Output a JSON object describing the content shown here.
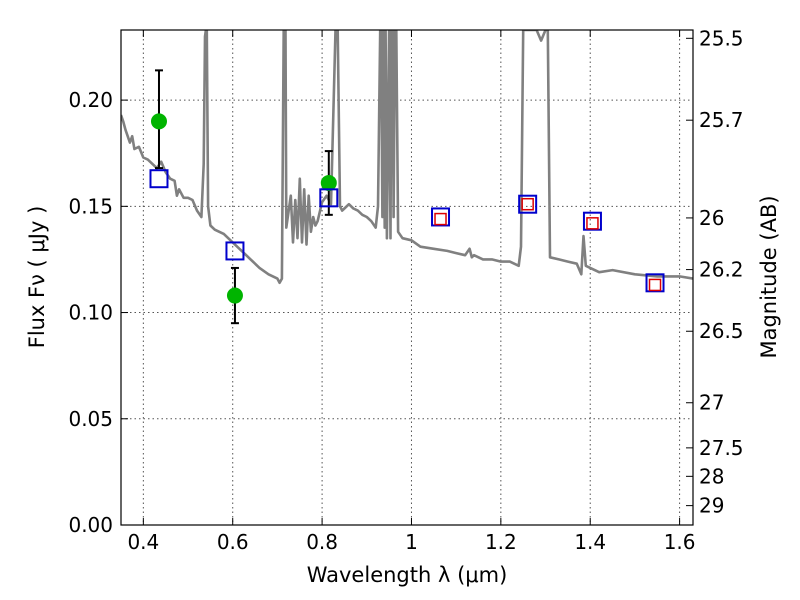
{
  "chart_data": {
    "type": "scatter",
    "title": "",
    "xlabel": "Wavelength  λ (μm)",
    "ylabel": "Flux  Fν  ( μJy )",
    "ylabel_right": "Magnitude (AB)",
    "xlim": [
      0.35,
      1.63
    ],
    "ylim": [
      0.0,
      0.233
    ],
    "grid": true,
    "x_ticks": [
      {
        "value": 0.4,
        "label": "0.4"
      },
      {
        "value": 0.6,
        "label": "0.6"
      },
      {
        "value": 0.8,
        "label": "0.8"
      },
      {
        "value": 1.0,
        "label": "1"
      },
      {
        "value": 1.2,
        "label": "1.2"
      },
      {
        "value": 1.4,
        "label": "1.4"
      },
      {
        "value": 1.6,
        "label": "1.6"
      }
    ],
    "y_ticks": [
      {
        "value": 0.0,
        "label": "0.00"
      },
      {
        "value": 0.05,
        "label": "0.05"
      },
      {
        "value": 0.1,
        "label": "0.10"
      },
      {
        "value": 0.15,
        "label": "0.15"
      },
      {
        "value": 0.2,
        "label": "0.20"
      }
    ],
    "right_ticks": [
      {
        "mag": 25.5,
        "label": "25.5"
      },
      {
        "mag": 25.7,
        "label": "25.7"
      },
      {
        "mag": 26.0,
        "label": "26"
      },
      {
        "mag": 26.2,
        "label": "26.2"
      },
      {
        "mag": 26.5,
        "label": "26.5"
      },
      {
        "mag": 27.0,
        "label": "27"
      },
      {
        "mag": 27.5,
        "label": "27.5"
      },
      {
        "mag": 28.0,
        "label": "28"
      },
      {
        "mag": 29.0,
        "label": "29"
      }
    ],
    "series": [
      {
        "kind": "line",
        "color": "#808080",
        "x": [
          0.35,
          0.355,
          0.36,
          0.365,
          0.37,
          0.375,
          0.38,
          0.39,
          0.4,
          0.41,
          0.42,
          0.43,
          0.44,
          0.45,
          0.46,
          0.47,
          0.475,
          0.48,
          0.49,
          0.5,
          0.51,
          0.52,
          0.53,
          0.535,
          0.538,
          0.54,
          0.542,
          0.545,
          0.55,
          0.56,
          0.57,
          0.58,
          0.6,
          0.62,
          0.64,
          0.66,
          0.68,
          0.7,
          0.705,
          0.71,
          0.714,
          0.716,
          0.718,
          0.72,
          0.73,
          0.735,
          0.74,
          0.745,
          0.75,
          0.755,
          0.76,
          0.765,
          0.77,
          0.775,
          0.78,
          0.785,
          0.79,
          0.8,
          0.81,
          0.82,
          0.83,
          0.835,
          0.84,
          0.845,
          0.85,
          0.86,
          0.87,
          0.88,
          0.89,
          0.9,
          0.91,
          0.92,
          0.925,
          0.93,
          0.932,
          0.935,
          0.937,
          0.94,
          0.942,
          0.945,
          0.95,
          0.953,
          0.955,
          0.958,
          0.96,
          0.963,
          0.966,
          0.97,
          0.98,
          1.0,
          1.02,
          1.05,
          1.08,
          1.1,
          1.12,
          1.13,
          1.135,
          1.14,
          1.16,
          1.18,
          1.2,
          1.22,
          1.24,
          1.245,
          1.25,
          1.26,
          1.27,
          1.275,
          1.28,
          1.29,
          1.3,
          1.305,
          1.31,
          1.33,
          1.35,
          1.37,
          1.38,
          1.385,
          1.39,
          1.4,
          1.42,
          1.45,
          1.5,
          1.55,
          1.6,
          1.63
        ],
        "y": [
          0.193,
          0.19,
          0.186,
          0.183,
          0.18,
          0.183,
          0.177,
          0.178,
          0.173,
          0.172,
          0.17,
          0.168,
          0.171,
          0.166,
          0.163,
          0.162,
          0.155,
          0.158,
          0.154,
          0.154,
          0.153,
          0.148,
          0.145,
          0.17,
          0.23,
          0.233,
          0.233,
          0.15,
          0.141,
          0.139,
          0.138,
          0.137,
          0.133,
          0.129,
          0.125,
          0.121,
          0.118,
          0.116,
          0.114,
          0.116,
          0.233,
          0.233,
          0.233,
          0.14,
          0.155,
          0.133,
          0.153,
          0.135,
          0.163,
          0.133,
          0.158,
          0.132,
          0.155,
          0.138,
          0.145,
          0.141,
          0.143,
          0.152,
          0.155,
          0.151,
          0.233,
          0.233,
          0.15,
          0.148,
          0.149,
          0.151,
          0.149,
          0.148,
          0.146,
          0.145,
          0.143,
          0.14,
          0.15,
          0.233,
          0.233,
          0.145,
          0.233,
          0.14,
          0.233,
          0.135,
          0.233,
          0.135,
          0.233,
          0.233,
          0.145,
          0.233,
          0.233,
          0.138,
          0.135,
          0.134,
          0.131,
          0.13,
          0.129,
          0.128,
          0.127,
          0.13,
          0.126,
          0.127,
          0.125,
          0.125,
          0.124,
          0.124,
          0.122,
          0.131,
          0.233,
          0.233,
          0.233,
          0.233,
          0.233,
          0.228,
          0.233,
          0.233,
          0.126,
          0.125,
          0.124,
          0.123,
          0.118,
          0.136,
          0.122,
          0.121,
          0.119,
          0.12,
          0.118,
          0.117,
          0.117,
          0.116
        ]
      },
      {
        "kind": "points",
        "marker": "circle",
        "color": "#00b400",
        "x": [
          0.435,
          0.605,
          0.815
        ],
        "y": [
          0.19,
          0.108,
          0.161
        ],
        "yerr_low": [
          0.022,
          0.013,
          0.015
        ],
        "yerr_high": [
          0.024,
          0.013,
          0.015
        ]
      },
      {
        "kind": "points",
        "marker": "open-square",
        "color": "#0000cc",
        "x": [
          0.435,
          0.605,
          0.815,
          1.065,
          1.26,
          1.405,
          1.545
        ],
        "y": [
          0.163,
          0.129,
          0.154,
          0.145,
          0.151,
          0.143,
          0.114
        ]
      },
      {
        "kind": "points",
        "marker": "open-square-small",
        "color": "#dd0000",
        "x": [
          1.065,
          1.26,
          1.405,
          1.545
        ],
        "y": [
          0.144,
          0.151,
          0.142,
          0.113
        ]
      }
    ]
  }
}
